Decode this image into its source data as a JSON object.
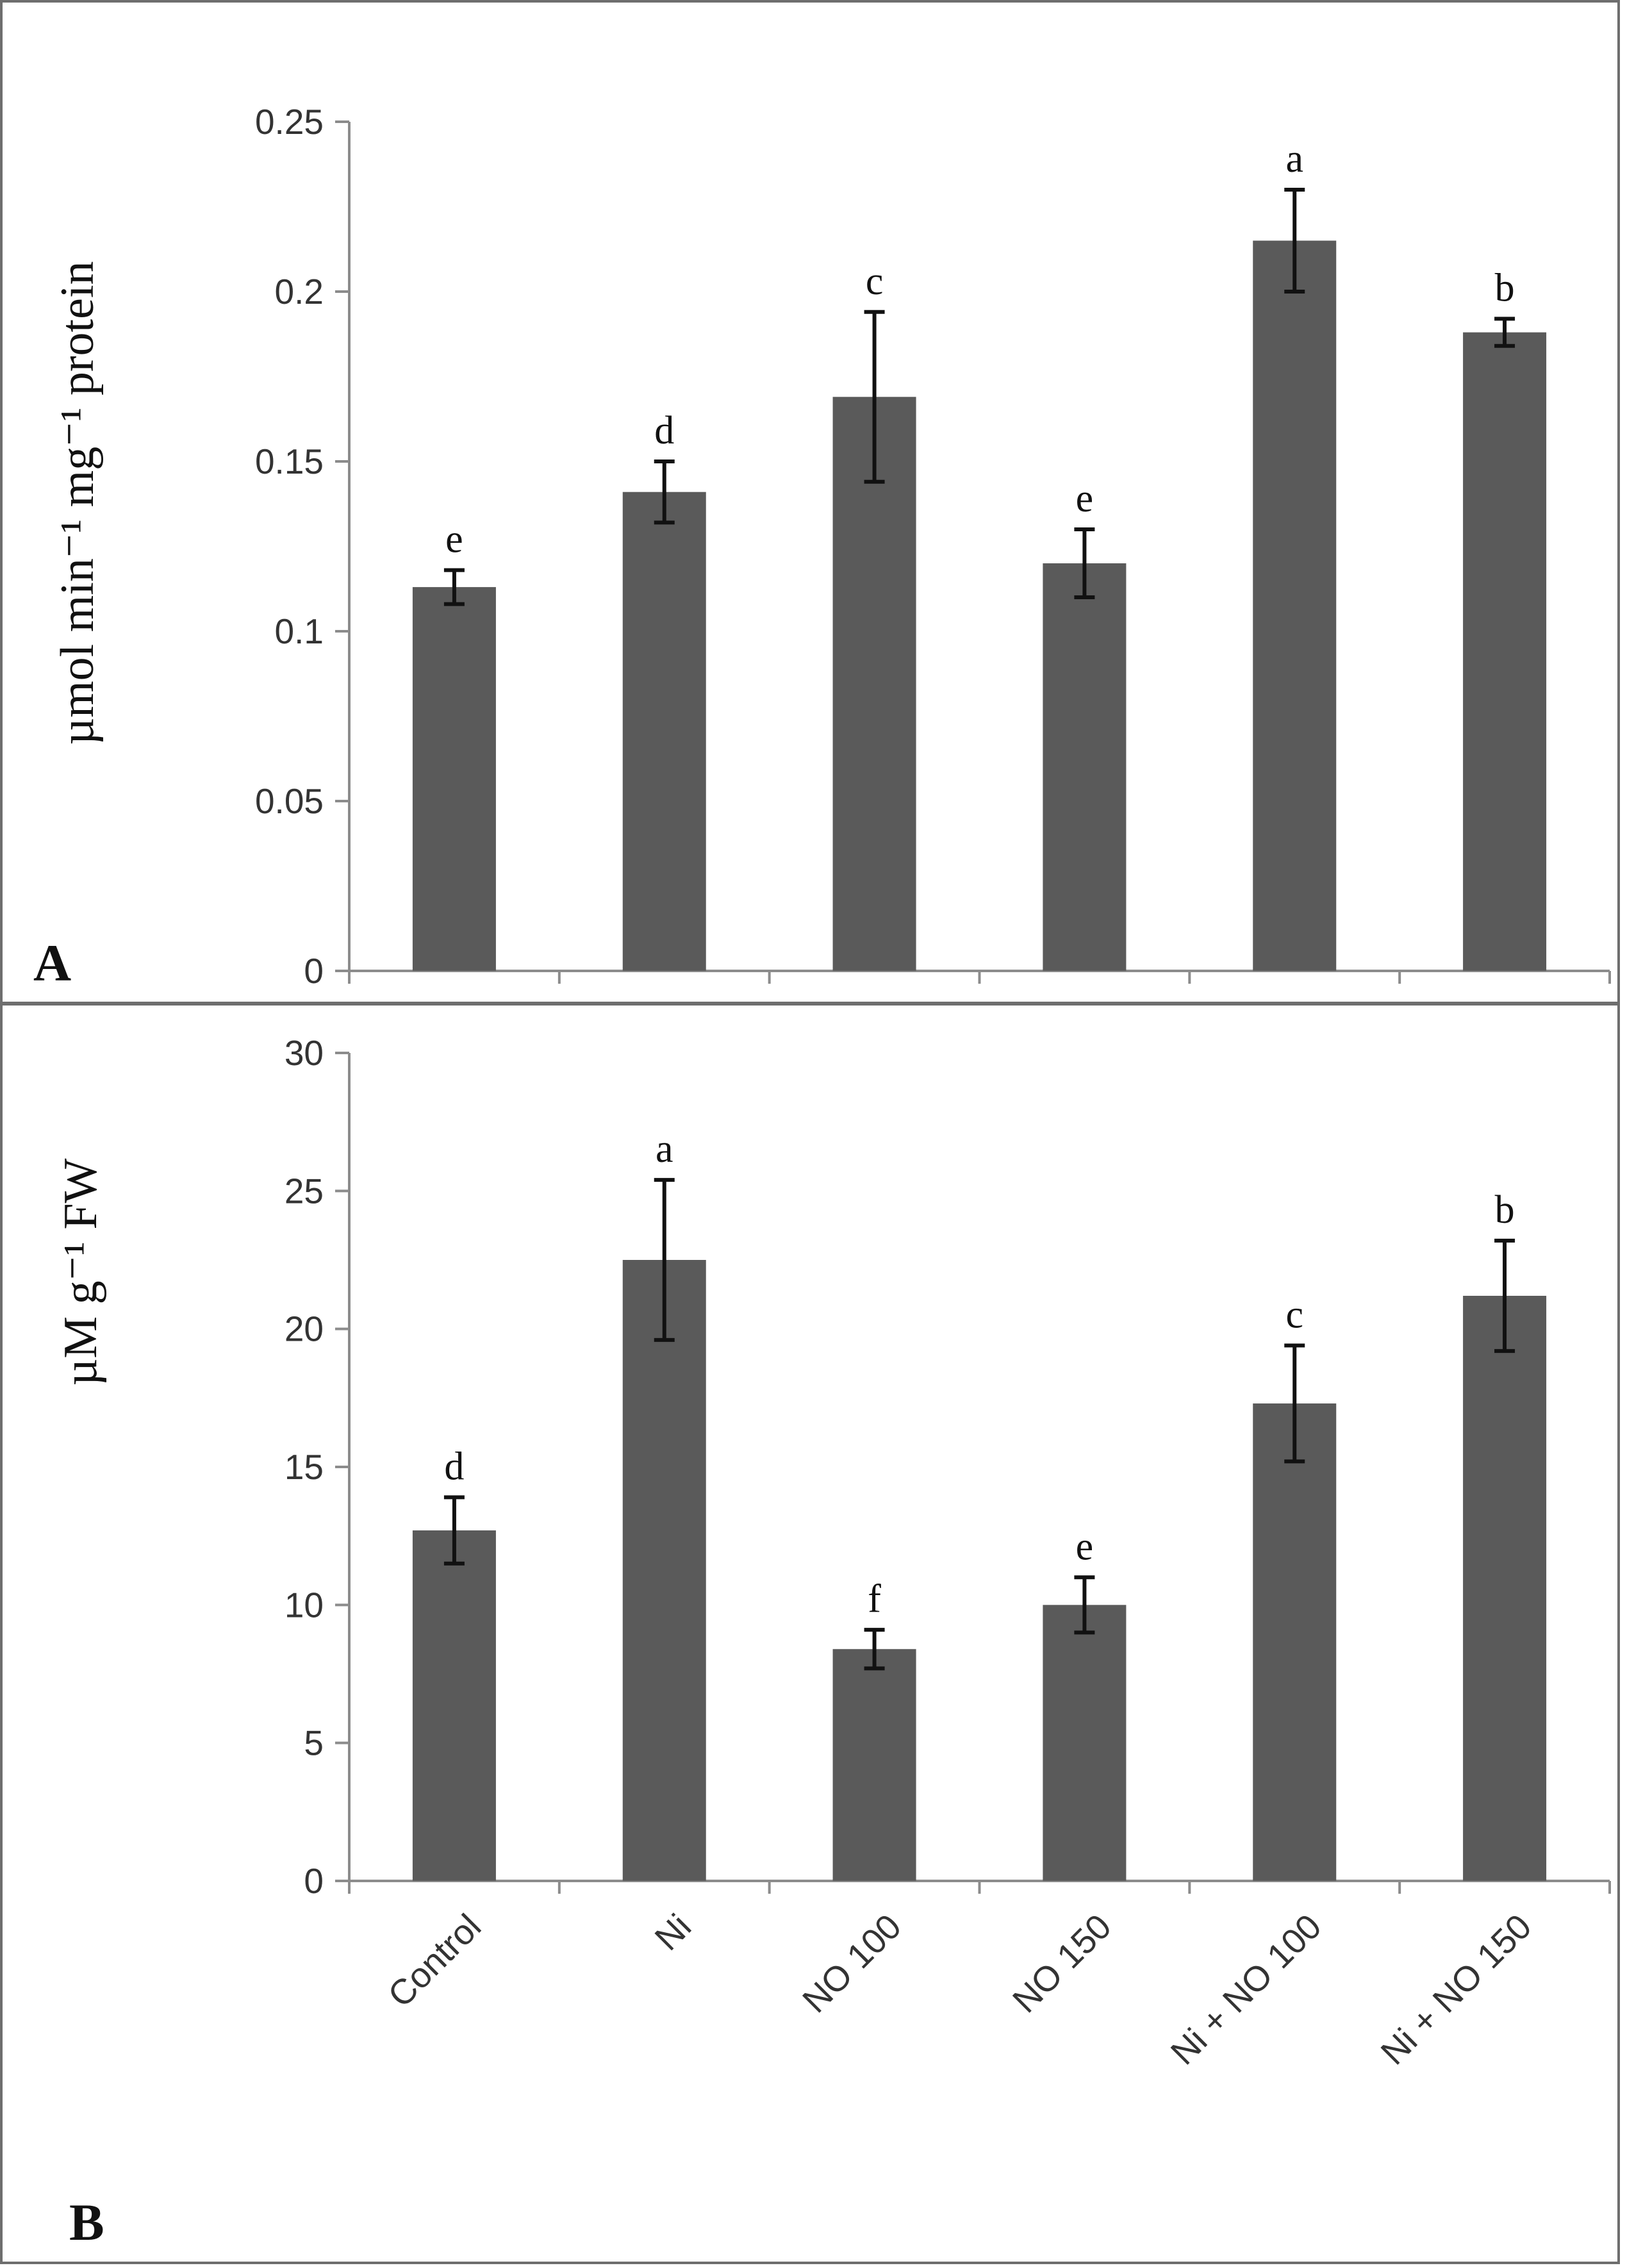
{
  "colors": {
    "bar": "#5a5a5a",
    "frame": "#6e6e6e",
    "axis": "#8c8c8c",
    "text": "#111111"
  },
  "chart_data": [
    {
      "type": "bar",
      "panel_label": "A",
      "ylabel": "µmol min⁻¹ mg⁻¹ protein",
      "ylim": [
        0,
        0.25
      ],
      "yticks": [
        0,
        0.05,
        0.1,
        0.15,
        0.2,
        0.25
      ],
      "ytick_labels": [
        "0",
        "0.05",
        "0.1",
        "0.15",
        "0.2",
        "0.25"
      ],
      "categories": [
        "Control",
        "Ni",
        "NO 100",
        "NO 150",
        "Ni + NO 100",
        "Ni + NO 150"
      ],
      "show_category_labels": false,
      "values": [
        0.113,
        0.141,
        0.169,
        0.12,
        0.215,
        0.188
      ],
      "errors": [
        0.005,
        0.009,
        0.025,
        0.01,
        0.015,
        0.004
      ],
      "significance": [
        "e",
        "d",
        "c",
        "e",
        "a",
        "b"
      ]
    },
    {
      "type": "bar",
      "panel_label": "B",
      "ylabel": "µM g⁻¹ FW",
      "ylim": [
        0,
        30
      ],
      "yticks": [
        0,
        5,
        10,
        15,
        20,
        25,
        30
      ],
      "ytick_labels": [
        "0",
        "5",
        "10",
        "15",
        "20",
        "25",
        "30"
      ],
      "categories": [
        "Control",
        "Ni",
        "NO 100",
        "NO 150",
        "Ni + NO 100",
        "Ni + NO 150"
      ],
      "show_category_labels": true,
      "values": [
        12.7,
        22.5,
        8.4,
        10.0,
        17.3,
        21.2
      ],
      "errors": [
        1.2,
        2.9,
        0.7,
        1.0,
        2.1,
        2.0
      ],
      "significance": [
        "d",
        "a",
        "f",
        "e",
        "c",
        "b"
      ]
    }
  ]
}
